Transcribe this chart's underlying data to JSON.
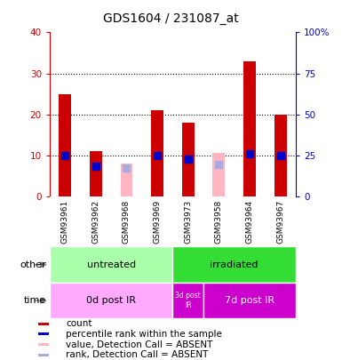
{
  "title": "GDS1604 / 231087_at",
  "samples": [
    "GSM93961",
    "GSM93962",
    "GSM93968",
    "GSM93969",
    "GSM93973",
    "GSM93958",
    "GSM93964",
    "GSM93967"
  ],
  "count_values": [
    25,
    11,
    null,
    21,
    18,
    null,
    33,
    20
  ],
  "count_absent_values": [
    null,
    null,
    8,
    null,
    null,
    10.5,
    null,
    null
  ],
  "rank_values": [
    25,
    18.5,
    null,
    25,
    22.5,
    null,
    26,
    25
  ],
  "rank_absent_values": [
    null,
    null,
    17,
    null,
    null,
    19.5,
    null,
    null
  ],
  "ylim_left": [
    0,
    40
  ],
  "yticks_left": [
    0,
    10,
    20,
    30,
    40
  ],
  "yticks_right": [
    0,
    25,
    50,
    75,
    100
  ],
  "ytick_right_labels": [
    "0",
    "25",
    "50",
    "75",
    "100%"
  ],
  "bar_color_present": "#cc0000",
  "bar_color_absent": "#ffb6c1",
  "dot_color_present": "#0000cc",
  "dot_color_absent": "#aaaadd",
  "left_axis_color": "#cc0000",
  "right_axis_color": "#0000cc",
  "sample_bg": "#cccccc",
  "untreated_color": "#aaffaa",
  "irradiated_color": "#33dd33",
  "time0d_color": "#ffaaff",
  "time3d_color": "#cc00cc",
  "time7d_color": "#cc00cc",
  "legend_items": [
    {
      "label": "count",
      "color": "#cc0000"
    },
    {
      "label": "percentile rank within the sample",
      "color": "#0000cc"
    },
    {
      "label": "value, Detection Call = ABSENT",
      "color": "#ffb6c1"
    },
    {
      "label": "rank, Detection Call = ABSENT",
      "color": "#aaaadd"
    }
  ]
}
